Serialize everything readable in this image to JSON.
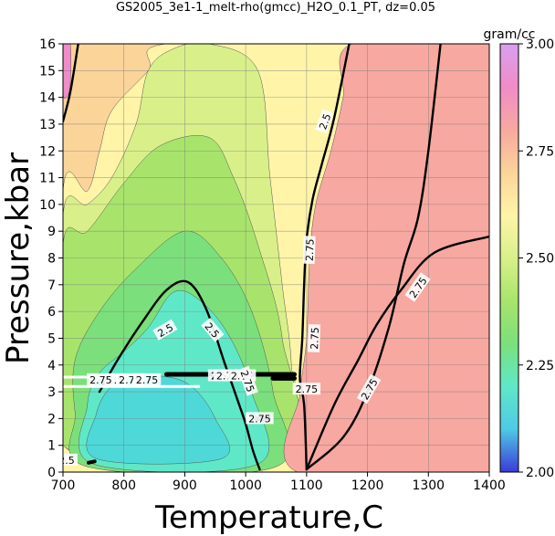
{
  "chart_data": {
    "type": "heatmap",
    "title": "GS2005_3e1-1_melt-rho(gmcc)_H2O_0.1_PT, dz=0.05",
    "xlabel": "Temperature,C",
    "ylabel": "Pressure,kbar",
    "xlim": [
      700,
      1400
    ],
    "ylim": [
      0,
      16
    ],
    "x_ticks": [
      "700",
      "800",
      "900",
      "1000",
      "1100",
      "1200",
      "1300",
      "1400"
    ],
    "y_ticks": [
      "0",
      "1",
      "2",
      "3",
      "4",
      "5",
      "6",
      "7",
      "8",
      "9",
      "10",
      "11",
      "12",
      "13",
      "14",
      "15",
      "16"
    ],
    "grid": true,
    "colorbar": {
      "unit": "gram/cc",
      "range": [
        2.0,
        3.0
      ],
      "ticks": [
        "2.00",
        "2.25",
        "2.50",
        "2.75",
        "3.00"
      ],
      "colors": [
        "#3b3bd6",
        "#4fc9e6",
        "#5fe8c8",
        "#7be07b",
        "#a8e46c",
        "#d9f08a",
        "#fff4a8",
        "#fbd49a",
        "#f7a8a0",
        "#f08cc8",
        "#d8a0f0"
      ]
    },
    "contour_labels": [
      "2.5",
      "2.5",
      "2.5",
      "2.5",
      "2.5",
      "2.5",
      "2.75",
      "2.75",
      "2.75",
      "2.75",
      "2.75",
      "2.75",
      "2.75",
      "2.75",
      "2.75",
      "2.75",
      "2.75",
      "2.75"
    ],
    "contour_label_points": [
      {
        "T": 706,
        "P": 0.45
      },
      {
        "T": 786,
        "P": 3.45
      },
      {
        "T": 868,
        "P": 5.3
      },
      {
        "T": 945,
        "P": 5.3
      },
      {
        "T": 956,
        "P": 3.6
      },
      {
        "T": 1130,
        "P": 13.1
      },
      {
        "T": 1105,
        "P": 8.3
      },
      {
        "T": 1113,
        "P": 5.0
      },
      {
        "T": 1100,
        "P": 3.1
      },
      {
        "T": 1023,
        "P": 2.0
      },
      {
        "T": 1283,
        "P": 6.9
      },
      {
        "T": 1203,
        "P": 3.1
      },
      {
        "T": 762,
        "P": 3.45
      },
      {
        "T": 810,
        "P": 3.45
      },
      {
        "T": 838,
        "P": 3.45
      },
      {
        "T": 970,
        "P": 3.6
      },
      {
        "T": 994,
        "P": 3.6
      },
      {
        "T": 1003,
        "P": 3.4
      }
    ],
    "contour_label_angles": [
      0,
      0,
      -30,
      50,
      0,
      -70,
      -88,
      -88,
      0,
      0,
      -55,
      -60,
      0,
      0,
      0,
      0,
      0,
      70
    ],
    "regions": [
      {
        "color": "#fbd49a",
        "points": [
          [
            700,
            0
          ],
          [
            1400,
            0
          ],
          [
            1400,
            16
          ],
          [
            700,
            16
          ]
        ]
      },
      {
        "color": "#fff4a8",
        "points": [
          [
            720,
            0
          ],
          [
            1080,
            0
          ],
          [
            1090,
            3
          ],
          [
            1130,
            6
          ],
          [
            1175,
            10
          ],
          [
            1195,
            14
          ],
          [
            1200,
            16
          ],
          [
            870,
            16
          ],
          [
            840,
            15
          ],
          [
            780,
            13.5
          ],
          [
            760,
            12
          ],
          [
            740,
            10.5
          ],
          [
            700,
            10.5
          ],
          [
            700,
            0
          ]
        ]
      },
      {
        "color": "#d9f08a",
        "points": [
          [
            700,
            1
          ],
          [
            1070,
            1
          ],
          [
            1075,
            4
          ],
          [
            1060,
            7
          ],
          [
            1040,
            11
          ],
          [
            1020,
            15
          ],
          [
            940,
            16
          ],
          [
            880,
            15.8
          ],
          [
            840,
            15
          ],
          [
            820,
            13
          ],
          [
            780,
            11
          ],
          [
            740,
            10
          ],
          [
            700,
            9.6
          ]
        ]
      },
      {
        "color": "#a8e46c",
        "points": [
          [
            700,
            1
          ],
          [
            1060,
            1
          ],
          [
            1060,
            5
          ],
          [
            1020,
            8.5
          ],
          [
            980,
            11
          ],
          [
            940,
            12.5
          ],
          [
            860,
            12.2
          ],
          [
            800,
            10.8
          ],
          [
            740,
            9
          ],
          [
            700,
            8.5
          ]
        ]
      },
      {
        "color": "#7be07b",
        "points": [
          [
            740,
            0.2
          ],
          [
            1050,
            0.2
          ],
          [
            1045,
            3
          ],
          [
            1010,
            6
          ],
          [
            960,
            8
          ],
          [
            900,
            9
          ],
          [
            820,
            7.6
          ],
          [
            760,
            6
          ],
          [
            720,
            4.2
          ],
          [
            720,
            2.2
          ]
        ]
      },
      {
        "color": "#5fe8c8",
        "points": [
          [
            750,
            0.3
          ],
          [
            1020,
            0.3
          ],
          [
            1010,
            3
          ],
          [
            970,
            5.2
          ],
          [
            920,
            6.5
          ],
          [
            880,
            6.7
          ],
          [
            840,
            5.4
          ],
          [
            800,
            4.5
          ],
          [
            760,
            3.7
          ],
          [
            740,
            2.5
          ]
        ]
      },
      {
        "color": "#4fd8d8",
        "points": [
          [
            755,
            0.5
          ],
          [
            960,
            0.5
          ],
          [
            950,
            2
          ],
          [
            905,
            3.3
          ],
          [
            840,
            3.6
          ],
          [
            785,
            3.3
          ],
          [
            755,
            2.2
          ]
        ]
      },
      {
        "color": "#f7a8a0",
        "points": [
          [
            1085,
            0
          ],
          [
            1400,
            0
          ],
          [
            1400,
            16
          ],
          [
            1175,
            16
          ],
          [
            1160,
            14
          ],
          [
            1140,
            12
          ],
          [
            1115,
            10
          ],
          [
            1105,
            8
          ],
          [
            1100,
            5
          ],
          [
            1090,
            3
          ]
        ]
      },
      {
        "color": "#f08cc8",
        "points": [
          [
            700,
            16
          ],
          [
            712,
            16
          ],
          [
            712,
            14.5
          ],
          [
            706,
            14
          ],
          [
            700,
            14.2
          ]
        ]
      }
    ],
    "contour_lines": [
      {
        "width": 2.4,
        "points": [
          [
            700,
            13.1
          ],
          [
            712,
            14.2
          ],
          [
            725,
            16
          ]
        ]
      },
      {
        "width": 2.4,
        "points": [
          [
            1100,
            0.1
          ],
          [
            1096,
            2.5
          ],
          [
            1089,
            3.5
          ],
          [
            1093,
            5
          ],
          [
            1096,
            7
          ],
          [
            1100,
            8.7
          ],
          [
            1110,
            10.2
          ],
          [
            1125,
            11.5
          ],
          [
            1145,
            13.2
          ],
          [
            1170,
            16
          ]
        ]
      },
      {
        "width": 2.4,
        "points": [
          [
            1100,
            0.1
          ],
          [
            1145,
            2.5
          ],
          [
            1185,
            4.2
          ],
          [
            1215,
            5.5
          ],
          [
            1255,
            6.8
          ],
          [
            1310,
            8.2
          ],
          [
            1400,
            8.8
          ]
        ]
      },
      {
        "width": 2.4,
        "points": [
          [
            1100,
            0.1
          ],
          [
            1160,
            1.3
          ],
          [
            1200,
            3.0
          ],
          [
            1235,
            5.4
          ],
          [
            1260,
            7.8
          ],
          [
            1283,
            9.5
          ],
          [
            1300,
            12
          ],
          [
            1320,
            16
          ]
        ]
      },
      {
        "width": 2.4,
        "points": [
          [
            760,
            3.0
          ],
          [
            790,
            4.2
          ],
          [
            830,
            5.6
          ],
          [
            870,
            6.8
          ],
          [
            905,
            7.1
          ],
          [
            935,
            6.1
          ],
          [
            965,
            4.1
          ],
          [
            985,
            2.8
          ],
          [
            1000,
            1.8
          ],
          [
            1012,
            0.8
          ],
          [
            1023,
            0.1
          ]
        ]
      },
      {
        "width": 5.0,
        "points": [
          [
            870,
            3.65
          ],
          [
            1080,
            3.65
          ]
        ]
      },
      {
        "width": 5.0,
        "points": [
          [
            1045,
            3.5
          ],
          [
            1080,
            3.5
          ]
        ]
      },
      {
        "width": 5.0,
        "points": [
          [
            1018,
            2.0
          ],
          [
            1038,
            2.0
          ]
        ]
      },
      {
        "width": 4.0,
        "points": [
          [
            742,
            0.35
          ],
          [
            752,
            0.4
          ]
        ]
      }
    ],
    "white_lines": [
      {
        "points": [
          [
            700,
            3.2
          ],
          [
            925,
            3.2
          ]
        ]
      },
      {
        "points": [
          [
            700,
            3.55
          ],
          [
            770,
            3.55
          ]
        ]
      }
    ]
  }
}
